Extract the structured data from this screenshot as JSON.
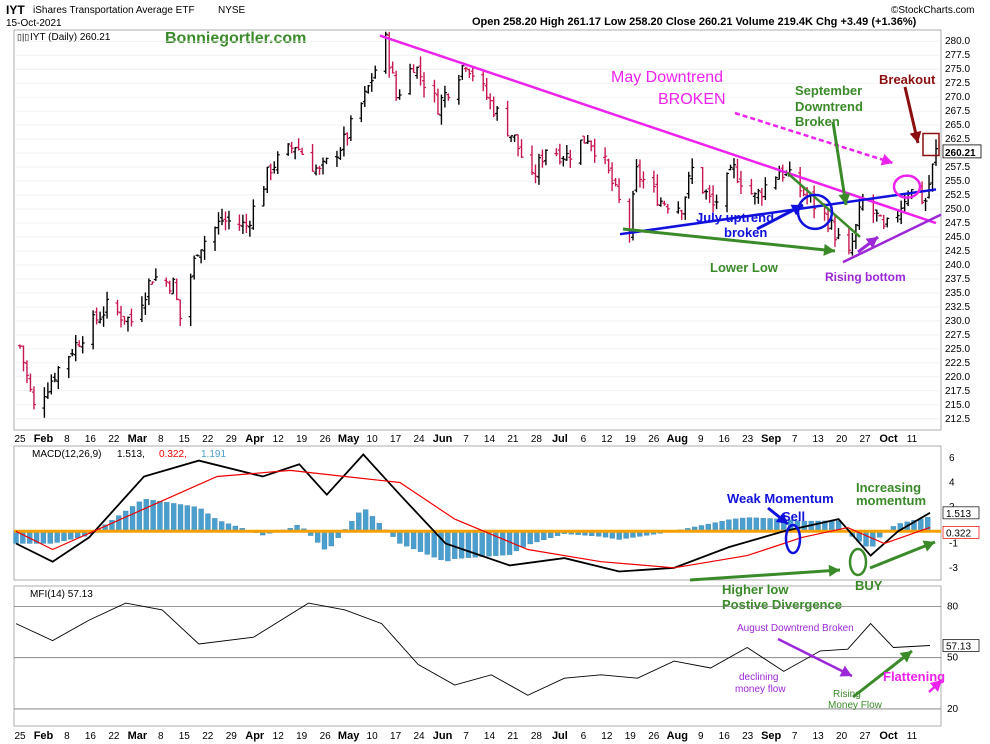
{
  "header": {
    "symbol": "IYT",
    "name": "iShares Transportation Average ETF",
    "exchange": "NYSE",
    "date": "15-Oct-2021",
    "quote": "Open 258.20   High 261.17   Low 258.20   Close 260.21   Volume 219.4K   Chg +3.49 (+1.36%)",
    "brand": "©StockCharts.com",
    "panel_label": "IYT (Daily) 260.21",
    "watermark": "Bonniegortler.com"
  },
  "colors": {
    "up_bar": "#000000",
    "down_bar": "#c8174f",
    "magenta": "#ee22ee",
    "blue": "#1111dd",
    "green": "#3a8a2a",
    "purple": "#9c27d8",
    "darkred": "#8b0f0f",
    "orange": "#f5a000",
    "macd_line": "#000000",
    "signal_line": "#ee0000",
    "histogram": "#4a9fcf"
  },
  "chart_data": [
    {
      "type": "ohlc",
      "title": "IYT (Daily) 260.21",
      "ylim": [
        210.5,
        282
      ],
      "y_ticks": [
        "280.0",
        "277.5",
        "275.0",
        "272.5",
        "270.0",
        "267.5",
        "265.0",
        "262.5",
        "260.0",
        "257.5",
        "255.0",
        "252.5",
        "250.0",
        "247.5",
        "245.0",
        "242.5",
        "240.0",
        "237.5",
        "235.0",
        "232.5",
        "230.0",
        "227.5",
        "225.0",
        "222.5",
        "220.0",
        "217.5",
        "215.0",
        "212.5"
      ],
      "last_price": "260.21",
      "x_ticks": [
        "25",
        "Feb",
        "8",
        "16",
        "22",
        "Mar",
        "8",
        "15",
        "22",
        "29",
        "Apr",
        "12",
        "19",
        "26",
        "May",
        "10",
        "17",
        "24",
        "Jun",
        "7",
        "14",
        "21",
        "28",
        "Jul",
        "6",
        "12",
        "19",
        "26",
        "Aug",
        "9",
        "16",
        "23",
        "Sep",
        "7",
        "13",
        "20",
        "27",
        "Oct",
        "11"
      ],
      "close_path": [
        [
          "2021-01-25",
          225.5
        ],
        [
          "2021-01-29",
          214.5
        ],
        [
          "2021-02-05",
          221.5
        ],
        [
          "2021-02-12",
          227.5
        ],
        [
          "2021-02-19",
          232.5
        ],
        [
          "2021-02-26",
          230.0
        ],
        [
          "2021-03-04",
          238.0
        ],
        [
          "2021-03-10",
          236.5
        ],
        [
          "2021-03-12",
          230.5
        ],
        [
          "2021-03-17",
          243.0
        ],
        [
          "2021-03-24",
          248.0
        ],
        [
          "2021-03-31",
          247.0
        ],
        [
          "2021-04-07",
          257.5
        ],
        [
          "2021-04-14",
          261.5
        ],
        [
          "2021-04-21",
          256.5
        ],
        [
          "2021-04-28",
          262.0
        ],
        [
          "2021-05-04",
          270.0
        ],
        [
          "2021-05-10",
          280.0
        ],
        [
          "2021-05-13",
          270.0
        ],
        [
          "2021-05-18",
          276.0
        ],
        [
          "2021-05-25",
          268.5
        ],
        [
          "2021-06-02",
          276.5
        ],
        [
          "2021-06-09",
          269.0
        ],
        [
          "2021-06-16",
          262.5
        ],
        [
          "2021-06-21",
          255.0
        ],
        [
          "2021-06-25",
          261.0
        ],
        [
          "2021-07-01",
          259.5
        ],
        [
          "2021-07-07",
          263.0
        ],
        [
          "2021-07-12",
          258.0
        ],
        [
          "2021-07-19",
          246.0
        ],
        [
          "2021-07-21",
          256.5
        ],
        [
          "2021-07-28",
          251.5
        ],
        [
          "2021-08-03",
          250.5
        ],
        [
          "2021-08-06",
          257.0
        ],
        [
          "2021-08-12",
          250.5
        ],
        [
          "2021-08-18",
          257.0
        ],
        [
          "2021-08-24",
          252.0
        ],
        [
          "2021-08-31",
          257.0
        ],
        [
          "2021-09-03",
          255.5
        ],
        [
          "2021-09-09",
          251.5
        ],
        [
          "2021-09-14",
          248.0
        ],
        [
          "2021-09-17",
          244.5
        ],
        [
          "2021-09-20",
          241.5
        ],
        [
          "2021-09-24",
          251.5
        ],
        [
          "2021-09-28",
          248.5
        ],
        [
          "2021-09-30",
          246.0
        ],
        [
          "2021-10-04",
          249.5
        ],
        [
          "2021-10-07",
          253.5
        ],
        [
          "2021-10-12",
          251.5
        ],
        [
          "2021-10-13",
          254.5
        ],
        [
          "2021-10-15",
          260.21
        ]
      ],
      "annotations": [
        {
          "text": "May Downtrend",
          "color": "magenta"
        },
        {
          "text": "BROKEN",
          "color": "magenta"
        },
        {
          "text": "September",
          "color": "green"
        },
        {
          "text": "Downtrend",
          "color": "green"
        },
        {
          "text": "Broken",
          "color": "green"
        },
        {
          "text": "Breakout",
          "color": "darkred"
        },
        {
          "text": "July uptrend",
          "color": "blue"
        },
        {
          "text": "broken",
          "color": "blue"
        },
        {
          "text": "Lower Low",
          "color": "green"
        },
        {
          "text": "Rising bottom",
          "color": "purple"
        }
      ]
    },
    {
      "type": "line",
      "title": "MACD(12,26,9)",
      "values_text": [
        "1.513,",
        "0.322,",
        "1.191"
      ],
      "ylim": [
        -4,
        7
      ],
      "y_ticks": [
        "6",
        "4",
        "2",
        "-1",
        "-3"
      ],
      "last_values": [
        "1.513",
        "0.322"
      ],
      "series": [
        {
          "name": "MACD",
          "values": [
            [
              0,
              -1.0
            ],
            [
              0.04,
              -2.5
            ],
            [
              0.08,
              -0.5
            ],
            [
              0.14,
              4.5
            ],
            [
              0.2,
              5.8
            ],
            [
              0.27,
              4.5
            ],
            [
              0.31,
              5.5
            ],
            [
              0.34,
              3.0
            ],
            [
              0.38,
              6.3
            ],
            [
              0.42,
              3.0
            ],
            [
              0.47,
              -1.0
            ],
            [
              0.54,
              -2.8
            ],
            [
              0.6,
              -2.2
            ],
            [
              0.66,
              -3.3
            ],
            [
              0.72,
              -3.0
            ],
            [
              0.78,
              -1.3
            ],
            [
              0.84,
              0.0
            ],
            [
              0.9,
              1.0
            ],
            [
              0.935,
              -2.0
            ],
            [
              0.965,
              0.0
            ],
            [
              1.0,
              1.513
            ]
          ]
        },
        {
          "name": "Signal",
          "values": [
            [
              0,
              0.0
            ],
            [
              0.04,
              -1.5
            ],
            [
              0.1,
              0.5
            ],
            [
              0.16,
              2.5
            ],
            [
              0.22,
              4.5
            ],
            [
              0.3,
              5.0
            ],
            [
              0.36,
              4.5
            ],
            [
              0.42,
              4.0
            ],
            [
              0.48,
              1.0
            ],
            [
              0.56,
              -1.5
            ],
            [
              0.64,
              -2.5
            ],
            [
              0.72,
              -3.0
            ],
            [
              0.8,
              -2.0
            ],
            [
              0.86,
              -0.5
            ],
            [
              0.91,
              0.3
            ],
            [
              0.95,
              -1.0
            ],
            [
              1.0,
              0.322
            ]
          ]
        }
      ],
      "annotations": [
        {
          "text": "Weak Momentum",
          "color": "blue"
        },
        {
          "text": "Sell",
          "color": "blue"
        },
        {
          "text": "Increasing",
          "color": "green"
        },
        {
          "text": "momentum",
          "color": "green"
        },
        {
          "text": "Higher low",
          "color": "green"
        },
        {
          "text": "Postive Divergence",
          "color": "green"
        },
        {
          "text": "BUY",
          "color": "green"
        }
      ]
    },
    {
      "type": "line",
      "title": "MFI(14) 57.13",
      "ylim": [
        10,
        92
      ],
      "y_ticks": [
        "80",
        "50",
        "20"
      ],
      "last_value": "57.13",
      "series": [
        {
          "name": "MFI",
          "values": [
            [
              0,
              70
            ],
            [
              0.04,
              60
            ],
            [
              0.08,
              72
            ],
            [
              0.12,
              82
            ],
            [
              0.16,
              78
            ],
            [
              0.2,
              58
            ],
            [
              0.26,
              62
            ],
            [
              0.32,
              82
            ],
            [
              0.36,
              78
            ],
            [
              0.4,
              70
            ],
            [
              0.44,
              46
            ],
            [
              0.48,
              34
            ],
            [
              0.52,
              40
            ],
            [
              0.56,
              28
            ],
            [
              0.6,
              38
            ],
            [
              0.64,
              40
            ],
            [
              0.68,
              38
            ],
            [
              0.72,
              48
            ],
            [
              0.76,
              44
            ],
            [
              0.8,
              56
            ],
            [
              0.84,
              42
            ],
            [
              0.88,
              54
            ],
            [
              0.91,
              55
            ],
            [
              0.935,
              70
            ],
            [
              0.96,
              56
            ],
            [
              1.0,
              57.13
            ]
          ]
        }
      ],
      "annotations": [
        {
          "text": "August Downtrend Broken",
          "color": "purple"
        },
        {
          "text": "declining",
          "color": "purple"
        },
        {
          "text": "money flow",
          "color": "purple"
        },
        {
          "text": "Rising",
          "color": "green"
        },
        {
          "text": "Money Flow",
          "color": "green"
        },
        {
          "text": "Flattening",
          "color": "magenta"
        }
      ]
    }
  ]
}
